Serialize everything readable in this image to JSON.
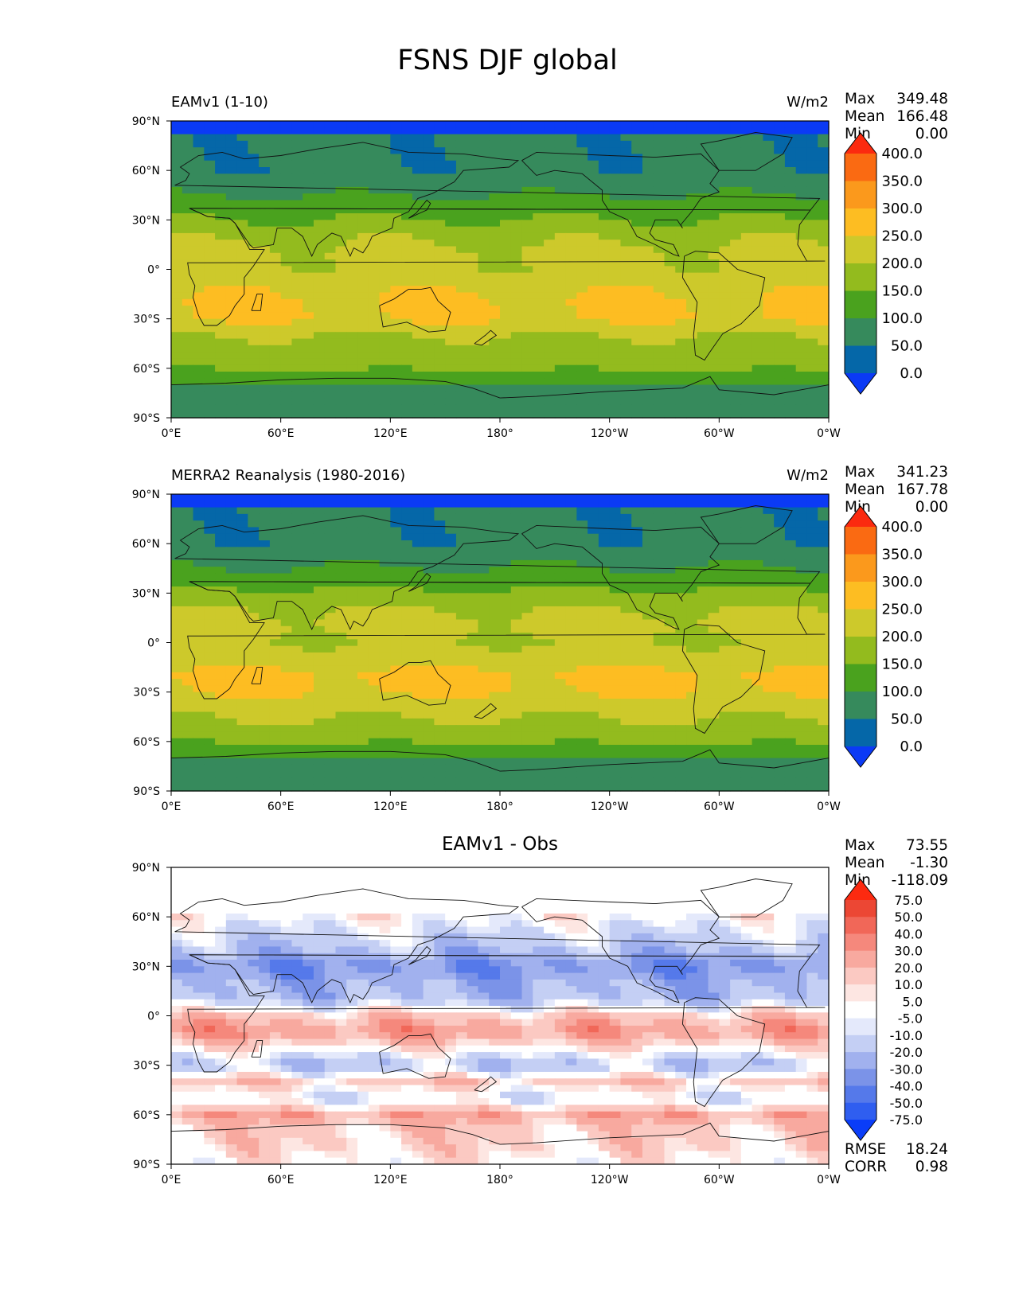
{
  "title": "FSNS DJF global",
  "lon_ticks": [
    "0°E",
    "60°E",
    "120°E",
    "180°",
    "120°W",
    "60°W",
    "0°W"
  ],
  "lat_ticks": [
    "90°N",
    "60°N",
    "30°N",
    "0°",
    "30°S",
    "60°S",
    "90°S"
  ],
  "colors": {
    "abs_levels": [
      "#0b3af5",
      "#0567a8",
      "#368a5c",
      "#4aa21e",
      "#93bb1e",
      "#cdc92b",
      "#fdbd22",
      "#fb991c",
      "#fa6a12",
      "#fb2a0f"
    ],
    "diff_levels": [
      "#0a3df8",
      "#2f5ef0",
      "#5579ea",
      "#7b93e8",
      "#a1b1ee",
      "#c4cff4",
      "#e4e9fb",
      "#ffffff",
      "#fde6e2",
      "#fbc9c2",
      "#f8a99f",
      "#f5887c",
      "#f16758",
      "#ec4734",
      "#fc2a10"
    ]
  },
  "chart_data": [
    {
      "type": "heatmap",
      "title_left": "EAMv1 (1-10)",
      "units": "W/m2",
      "stats": {
        "max": "349.48",
        "mean": "166.48",
        "min": "0.00"
      },
      "colorbar_labels": [
        "0.0",
        "50.0",
        "100.0",
        "150.0",
        "200.0",
        "250.0",
        "300.0",
        "350.0",
        "400.0"
      ],
      "xlim": [
        0,
        360
      ],
      "ylim": [
        -90,
        90
      ],
      "zonal_profile": {
        "lat": [
          -90,
          -80,
          -70,
          -60,
          -50,
          -40,
          -30,
          -20,
          -10,
          0,
          10,
          20,
          30,
          40,
          50,
          60,
          70,
          80,
          84,
          90
        ],
        "value": [
          90,
          95,
          100,
          160,
          175,
          200,
          255,
          255,
          240,
          210,
          210,
          190,
          150,
          120,
          80,
          60,
          60,
          60,
          0,
          0
        ]
      }
    },
    {
      "type": "heatmap",
      "title_left": "MERRA2 Reanalysis (1980-2016)",
      "units": "W/m2",
      "stats": {
        "max": "341.23",
        "mean": "167.78",
        "min": "0.00"
      },
      "colorbar_labels": [
        "0.0",
        "50.0",
        "100.0",
        "150.0",
        "200.0",
        "250.0",
        "300.0",
        "350.0",
        "400.0"
      ],
      "xlim": [
        0,
        360
      ],
      "ylim": [
        -90,
        90
      ],
      "zonal_profile": {
        "lat": [
          -90,
          -80,
          -70,
          -60,
          -50,
          -40,
          -30,
          -20,
          -10,
          0,
          10,
          20,
          30,
          40,
          50,
          60,
          70,
          80,
          84,
          90
        ],
        "value": [
          90,
          95,
          100,
          160,
          190,
          215,
          255,
          260,
          230,
          200,
          215,
          200,
          160,
          120,
          85,
          60,
          60,
          60,
          0,
          0
        ]
      }
    },
    {
      "type": "heatmap",
      "title_center": "EAMv1 - Obs",
      "stats": {
        "max": "73.55",
        "mean": "-1.30",
        "min": "-118.09"
      },
      "colorbar_labels": [
        "-75.0",
        "-50.0",
        "-40.0",
        "-30.0",
        "-20.0",
        "-10.0",
        "-5.0",
        "5.0",
        "10.0",
        "20.0",
        "30.0",
        "40.0",
        "50.0",
        "75.0"
      ],
      "rmse": "18.24",
      "corr": "0.98",
      "xlim": [
        0,
        360
      ],
      "ylim": [
        -90,
        90
      ],
      "zonal_profile": {
        "lat": [
          -90,
          -80,
          -70,
          -60,
          -50,
          -40,
          -30,
          -20,
          -10,
          0,
          10,
          20,
          30,
          40,
          50,
          60,
          70,
          80,
          90
        ],
        "value": [
          3,
          10,
          12,
          25,
          -8,
          15,
          -20,
          5,
          30,
          15,
          -20,
          -25,
          -35,
          -20,
          -10,
          0,
          0,
          0,
          0
        ]
      }
    }
  ],
  "labels": {
    "max": "Max",
    "mean": "Mean",
    "min": "Min",
    "rmse": "RMSE",
    "corr": "CORR"
  }
}
